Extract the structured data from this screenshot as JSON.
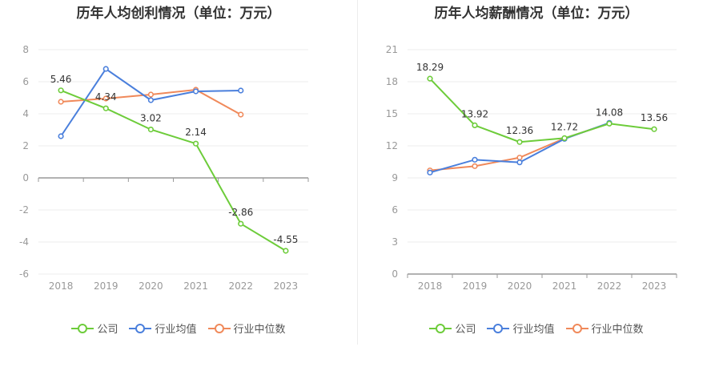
{
  "colors": {
    "company": "#6dcc3a",
    "avg": "#4a7fdc",
    "median": "#f0895a",
    "grid": "#ececec",
    "axis": "#999999",
    "label": "#999999",
    "value": "#333333"
  },
  "legend": {
    "company": "公司",
    "avg": "行业均值",
    "median": "行业中位数"
  },
  "chart_data": [
    {
      "type": "line",
      "title": "历年人均创利情况（单位：万元）",
      "x": [
        "2018",
        "2019",
        "2020",
        "2021",
        "2022",
        "2023"
      ],
      "ylim": [
        -6,
        8
      ],
      "yticks": [
        -6,
        -4,
        -2,
        0,
        2,
        4,
        6,
        8
      ],
      "grid": true,
      "legend_position": "bottom",
      "series": [
        {
          "key": "company",
          "name": "公司",
          "values": [
            5.46,
            4.34,
            3.02,
            2.14,
            -2.86,
            -4.55
          ],
          "labels": [
            "5.46",
            "4.34",
            "3.02",
            "2.14",
            "-2.86",
            "-4.55"
          ]
        },
        {
          "key": "avg",
          "name": "行业均值",
          "values": [
            2.6,
            6.8,
            4.85,
            5.4,
            5.45,
            null
          ]
        },
        {
          "key": "median",
          "name": "行业中位数",
          "values": [
            4.75,
            4.95,
            5.2,
            5.5,
            3.95,
            null
          ]
        }
      ]
    },
    {
      "type": "line",
      "title": "历年人均薪酬情况（单位：万元）",
      "x": [
        "2018",
        "2019",
        "2020",
        "2021",
        "2022",
        "2023"
      ],
      "ylim": [
        0,
        21
      ],
      "yticks": [
        0,
        3,
        6,
        9,
        12,
        15,
        18,
        21
      ],
      "grid": true,
      "legend_position": "bottom",
      "series": [
        {
          "key": "company",
          "name": "公司",
          "values": [
            18.29,
            13.92,
            12.36,
            12.72,
            14.08,
            13.56
          ],
          "labels": [
            "18.29",
            "13.92",
            "12.36",
            "12.72",
            "14.08",
            "13.56"
          ]
        },
        {
          "key": "avg",
          "name": "行业均值",
          "values": [
            9.5,
            10.7,
            10.45,
            12.65,
            14.15,
            null
          ]
        },
        {
          "key": "median",
          "name": "行业中位数",
          "values": [
            9.7,
            10.1,
            10.9,
            12.7,
            14.1,
            null
          ]
        }
      ]
    }
  ]
}
